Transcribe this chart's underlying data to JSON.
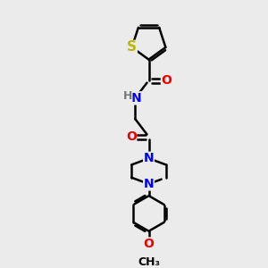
{
  "background_color": "#ebebeb",
  "bond_color": "#000000",
  "bond_width": 1.8,
  "atom_colors": {
    "S": "#b8b800",
    "N": "#0000ee",
    "O": "#ee0000",
    "C": "#000000"
  },
  "font_size": 10,
  "fig_width": 3.0,
  "fig_height": 3.0,
  "dpi": 100
}
